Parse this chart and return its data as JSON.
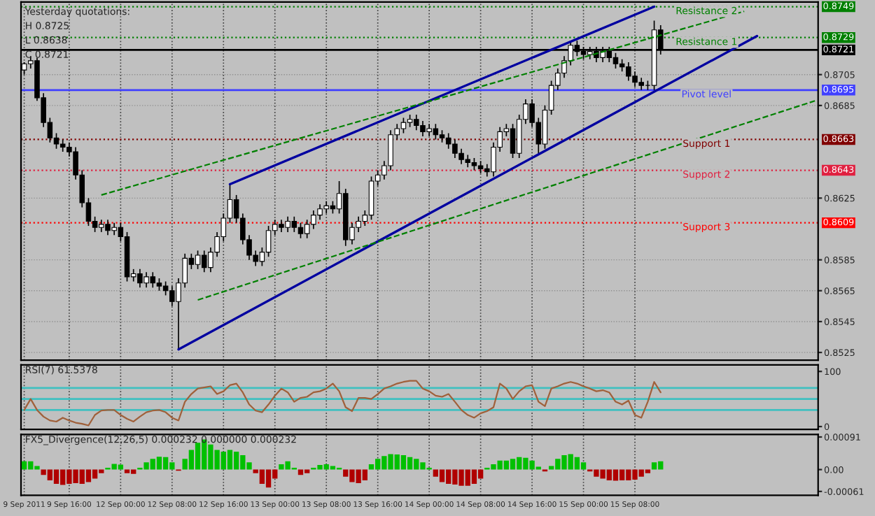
{
  "chart_data": [
    {
      "type": "candlestick",
      "tick_labels": "y",
      "grid": true,
      "annotations": [
        "Yesterday quotations:",
        "H 0.8725",
        "L 0.8638",
        "C 0.8721",
        {
          "text": "Resistance 2",
          "y": 0.8749
        },
        {
          "text": "Resistance 1",
          "y": 0.8729
        },
        {
          "text": "Pivot level",
          "y": 0.8695
        },
        {
          "text": "Support 1",
          "y": 0.8663
        },
        {
          "text": "Support 2",
          "y": 0.8643
        },
        {
          "text": "Support 3",
          "y": 0.8609
        }
      ],
      "categories": [
        null,
        null,
        null,
        null,
        null,
        null,
        null,
        null,
        null,
        null,
        null,
        null,
        null,
        null,
        null,
        null,
        null,
        null,
        null,
        null,
        null,
        null,
        null,
        null,
        null,
        null,
        null,
        null,
        null,
        null,
        null,
        null,
        null,
        null,
        null,
        null,
        null,
        null,
        null,
        null,
        null,
        null,
        null,
        null,
        null,
        null,
        null,
        null,
        null,
        null,
        null,
        null,
        null,
        null,
        null,
        null,
        null,
        null,
        null,
        null,
        null,
        null,
        null,
        null,
        null,
        null,
        null,
        null,
        null,
        null,
        null,
        null,
        null,
        null,
        null,
        null,
        null,
        null,
        null,
        null,
        null,
        null,
        null,
        null,
        null,
        null,
        null,
        null,
        null,
        null,
        null,
        null,
        null,
        null,
        null,
        null,
        null,
        null,
        null,
        null,
        null,
        null,
        null,
        null,
        null,
        null,
        null,
        null,
        null,
        null,
        null,
        null,
        null,
        null,
        null,
        null,
        null,
        null,
        null,
        null,
        null,
        null,
        null,
        null
      ],
      "ohlc": [
        [
          0.8708,
          0.8713,
          0.8705,
          0.8712
        ],
        [
          0.8712,
          0.8717,
          0.8709,
          0.8714
        ],
        [
          0.8714,
          0.8716,
          0.8688,
          0.869
        ],
        [
          0.869,
          0.8693,
          0.8671,
          0.8674
        ],
        [
          0.8674,
          0.8677,
          0.8661,
          0.8664
        ],
        [
          0.8664,
          0.8667,
          0.8657,
          0.866
        ],
        [
          0.866,
          0.8663,
          0.8655,
          0.8658
        ],
        [
          0.8658,
          0.8661,
          0.8652,
          0.8655
        ],
        [
          0.8655,
          0.8658,
          0.8637,
          0.864
        ],
        [
          0.864,
          0.8643,
          0.8619,
          0.8622
        ],
        [
          0.8622,
          0.8625,
          0.8607,
          0.861
        ],
        [
          0.861,
          0.8613,
          0.8603,
          0.8606
        ],
        [
          0.8606,
          0.8611,
          0.8603,
          0.8608
        ],
        [
          0.8608,
          0.8611,
          0.8601,
          0.8604
        ],
        [
          0.8604,
          0.8609,
          0.8601,
          0.8606
        ],
        [
          0.8606,
          0.8609,
          0.8597,
          0.86
        ],
        [
          0.86,
          0.8603,
          0.8571,
          0.8574
        ],
        [
          0.8574,
          0.8579,
          0.8571,
          0.8576
        ],
        [
          0.8576,
          0.8579,
          0.8567,
          0.857
        ],
        [
          0.857,
          0.8577,
          0.8567,
          0.8574
        ],
        [
          0.8574,
          0.8577,
          0.8567,
          0.857
        ],
        [
          0.857,
          0.8573,
          0.8565,
          0.8568
        ],
        [
          0.8568,
          0.8571,
          0.8562,
          0.8565
        ],
        [
          0.8565,
          0.8568,
          0.8555,
          0.8558
        ],
        [
          0.8558,
          0.8573,
          0.8527,
          0.857
        ],
        [
          0.857,
          0.8589,
          0.8567,
          0.8586
        ],
        [
          0.8586,
          0.8589,
          0.8579,
          0.8582
        ],
        [
          0.8582,
          0.8591,
          0.8579,
          0.8588
        ],
        [
          0.8588,
          0.8591,
          0.8577,
          0.858
        ],
        [
          0.858,
          0.8593,
          0.8577,
          0.859
        ],
        [
          0.859,
          0.8603,
          0.8587,
          0.86
        ],
        [
          0.86,
          0.8615,
          0.8597,
          0.8612
        ],
        [
          0.8612,
          0.8634,
          0.8609,
          0.8624
        ],
        [
          0.8624,
          0.8627,
          0.8609,
          0.8612
        ],
        [
          0.8612,
          0.8615,
          0.8595,
          0.8598
        ],
        [
          0.8598,
          0.8601,
          0.8585,
          0.8588
        ],
        [
          0.8588,
          0.8591,
          0.8581,
          0.8584
        ],
        [
          0.8584,
          0.8593,
          0.8581,
          0.859
        ],
        [
          0.859,
          0.8607,
          0.8587,
          0.8604
        ],
        [
          0.8604,
          0.8611,
          0.8601,
          0.8608
        ],
        [
          0.8608,
          0.8611,
          0.8603,
          0.8606
        ],
        [
          0.8606,
          0.8613,
          0.8603,
          0.861
        ],
        [
          0.861,
          0.8613,
          0.8603,
          0.8606
        ],
        [
          0.8606,
          0.8609,
          0.8599,
          0.8602
        ],
        [
          0.8602,
          0.8611,
          0.8599,
          0.8608
        ],
        [
          0.8608,
          0.8617,
          0.8605,
          0.8614
        ],
        [
          0.8614,
          0.8621,
          0.8611,
          0.8618
        ],
        [
          0.8618,
          0.8623,
          0.8615,
          0.862
        ],
        [
          0.862,
          0.8623,
          0.8615,
          0.8618
        ],
        [
          0.8618,
          0.8636,
          0.8615,
          0.8628
        ],
        [
          0.8628,
          0.8631,
          0.8594,
          0.8598
        ],
        [
          0.8598,
          0.8609,
          0.8595,
          0.8606
        ],
        [
          0.8606,
          0.8613,
          0.8603,
          0.861
        ],
        [
          0.861,
          0.8617,
          0.8607,
          0.8614
        ],
        [
          0.8614,
          0.8639,
          0.8611,
          0.8636
        ],
        [
          0.8636,
          0.8643,
          0.8633,
          0.864
        ],
        [
          0.864,
          0.8649,
          0.8637,
          0.8646
        ],
        [
          0.8646,
          0.8669,
          0.8643,
          0.8666
        ],
        [
          0.8666,
          0.8673,
          0.8663,
          0.867
        ],
        [
          0.867,
          0.8677,
          0.8667,
          0.8674
        ],
        [
          0.8674,
          0.8679,
          0.8671,
          0.8676
        ],
        [
          0.8676,
          0.8679,
          0.8669,
          0.8672
        ],
        [
          0.8672,
          0.8675,
          0.8665,
          0.8668
        ],
        [
          0.8668,
          0.8673,
          0.8665,
          0.867
        ],
        [
          0.867,
          0.8673,
          0.8663,
          0.8666
        ],
        [
          0.8666,
          0.8669,
          0.8661,
          0.8664
        ],
        [
          0.8664,
          0.8667,
          0.8657,
          0.866
        ],
        [
          0.866,
          0.8663,
          0.8651,
          0.8654
        ],
        [
          0.8654,
          0.8657,
          0.8647,
          0.865
        ],
        [
          0.865,
          0.8653,
          0.8645,
          0.8648
        ],
        [
          0.8648,
          0.8651,
          0.8643,
          0.8646
        ],
        [
          0.8646,
          0.8649,
          0.8641,
          0.8644
        ],
        [
          0.8644,
          0.8647,
          0.8639,
          0.8642
        ],
        [
          0.8642,
          0.8661,
          0.8639,
          0.8658
        ],
        [
          0.8658,
          0.8671,
          0.8655,
          0.8668
        ],
        [
          0.8668,
          0.8673,
          0.8665,
          0.867
        ],
        [
          0.867,
          0.8673,
          0.8651,
          0.8654
        ],
        [
          0.8654,
          0.8679,
          0.8651,
          0.8676
        ],
        [
          0.8676,
          0.8689,
          0.8673,
          0.8686
        ],
        [
          0.8686,
          0.8689,
          0.8671,
          0.8674
        ],
        [
          0.8674,
          0.8677,
          0.8654,
          0.866
        ],
        [
          0.866,
          0.8685,
          0.8657,
          0.8682
        ],
        [
          0.8682,
          0.8701,
          0.8679,
          0.8698
        ],
        [
          0.8698,
          0.8709,
          0.8695,
          0.8706
        ],
        [
          0.8706,
          0.8717,
          0.8703,
          0.8714
        ],
        [
          0.8714,
          0.8727,
          0.8711,
          0.8724
        ],
        [
          0.8724,
          0.8727,
          0.8717,
          0.872
        ],
        [
          0.872,
          0.8723,
          0.8715,
          0.8718
        ],
        [
          0.8718,
          0.8723,
          0.8715,
          0.872
        ],
        [
          0.872,
          0.8723,
          0.8713,
          0.8716
        ],
        [
          0.8716,
          0.8723,
          0.8713,
          0.872
        ],
        [
          0.872,
          0.8723,
          0.8713,
          0.8716
        ],
        [
          0.8716,
          0.8719,
          0.8709,
          0.8712
        ],
        [
          0.8712,
          0.8715,
          0.8707,
          0.871
        ],
        [
          0.871,
          0.8713,
          0.8701,
          0.8704
        ],
        [
          0.8704,
          0.8707,
          0.8697,
          0.87
        ],
        [
          0.87,
          0.8703,
          0.8695,
          0.8698
        ],
        [
          0.8698,
          0.8701,
          0.8695,
          0.8698
        ],
        [
          0.8698,
          0.874,
          0.8695,
          0.8734
        ],
        [
          0.8734,
          0.8737,
          0.8718,
          0.8721
        ],
        null,
        null,
        null,
        null,
        null,
        null,
        null,
        null,
        null,
        null,
        null,
        null,
        null,
        null,
        null,
        null,
        null,
        null,
        null,
        null,
        null,
        null,
        null,
        null
      ],
      "series": [
        {
          "type": "line",
          "color": "#0000a0",
          "values": [
            null,
            null,
            null,
            null,
            null,
            null,
            null,
            null,
            null,
            null,
            null,
            null,
            null,
            null,
            null,
            null,
            null,
            null,
            null,
            null,
            null,
            null,
            null,
            null,
            null,
            null,
            null,
            null,
            null,
            null,
            null,
            null,
            0.8634,
            null,
            null,
            null,
            null,
            null,
            null,
            null,
            null,
            null,
            null,
            null,
            null,
            null,
            null,
            null,
            null,
            null,
            null,
            null,
            null,
            null,
            null,
            null,
            null,
            null,
            null,
            null,
            null,
            null,
            null,
            null,
            null,
            null,
            null,
            null,
            null,
            null,
            null,
            null,
            null,
            null,
            null,
            null,
            null,
            null,
            null,
            null,
            null,
            null,
            null,
            null,
            null,
            null,
            null,
            null,
            null,
            null,
            null,
            null,
            null,
            null,
            null,
            null,
            null,
            null,
            0.8749,
            null,
            null,
            null,
            null,
            null,
            null,
            null,
            null,
            null,
            null,
            null,
            null,
            null,
            null,
            null,
            null,
            null,
            null,
            null,
            null,
            null,
            null,
            null,
            null,
            null
          ]
        },
        {
          "type": "line",
          "color": "#0000a0",
          "values": [
            null,
            null,
            null,
            null,
            null,
            null,
            null,
            null,
            null,
            null,
            null,
            null,
            null,
            null,
            null,
            null,
            null,
            null,
            null,
            null,
            null,
            null,
            null,
            null,
            0.8527,
            null,
            null,
            null,
            null,
            null,
            null,
            null,
            null,
            null,
            null,
            null,
            null,
            null,
            null,
            null,
            null,
            null,
            null,
            null,
            null,
            null,
            null,
            null,
            null,
            null,
            null,
            null,
            null,
            null,
            null,
            null,
            null,
            null,
            null,
            null,
            null,
            null,
            null,
            null,
            null,
            null,
            null,
            null,
            null,
            null,
            null,
            null,
            null,
            null,
            null,
            null,
            null,
            null,
            null,
            null,
            null,
            null,
            null,
            null,
            null,
            null,
            null,
            null,
            null,
            null,
            null,
            null,
            null,
            null,
            null,
            null,
            null,
            null,
            null,
            null,
            null,
            null,
            null,
            null,
            null,
            null,
            null,
            null,
            null,
            null,
            null,
            null,
            null,
            null,
            0.873,
            null,
            null,
            null,
            null,
            null,
            null,
            null,
            null,
            null
          ]
        },
        {
          "type": "line",
          "color": "#008000",
          "line_style": "dashed",
          "values": [
            null,
            null,
            null,
            null,
            null,
            null,
            null,
            null,
            null,
            null,
            null,
            null,
            0.8627,
            null,
            null,
            null,
            null,
            null,
            null,
            null,
            null,
            null,
            null,
            null,
            null,
            null,
            null,
            null,
            null,
            null,
            null,
            null,
            null,
            null,
            null,
            null,
            null,
            null,
            null,
            null,
            null,
            null,
            null,
            null,
            null,
            null,
            null,
            null,
            null,
            null,
            null,
            null,
            null,
            null,
            null,
            null,
            null,
            null,
            null,
            null,
            null,
            null,
            null,
            null,
            null,
            null,
            null,
            null,
            null,
            null,
            null,
            null,
            null,
            null,
            null,
            null,
            null,
            null,
            null,
            null,
            null,
            null,
            null,
            null,
            null,
            null,
            null,
            null,
            null,
            null,
            null,
            null,
            null,
            null,
            null,
            null,
            null,
            null,
            null,
            null,
            null,
            null,
            null,
            null,
            null,
            null,
            null,
            null,
            null,
            null,
            null,
            null,
            0.8746,
            null,
            null,
            null,
            null,
            null,
            null,
            null,
            null,
            null,
            null,
            null
          ]
        },
        {
          "type": "line",
          "color": "#008000",
          "line_style": "dashed",
          "values": [
            null,
            null,
            null,
            null,
            null,
            null,
            null,
            null,
            null,
            null,
            null,
            null,
            null,
            null,
            null,
            null,
            null,
            null,
            null,
            null,
            null,
            null,
            null,
            null,
            null,
            null,
            null,
            0.8559,
            null,
            null,
            null,
            null,
            null,
            null,
            null,
            null,
            null,
            null,
            null,
            null,
            null,
            null,
            null,
            null,
            null,
            null,
            null,
            null,
            null,
            null,
            null,
            null,
            null,
            null,
            null,
            null,
            null,
            null,
            null,
            null,
            null,
            null,
            null,
            null,
            null,
            null,
            null,
            null,
            null,
            null,
            null,
            null,
            null,
            null,
            null,
            null,
            null,
            null,
            null,
            null,
            null,
            null,
            null,
            null,
            null,
            null,
            null,
            null,
            null,
            null,
            null,
            null,
            null,
            null,
            null,
            null,
            null,
            null,
            null,
            null,
            null,
            null,
            null,
            null,
            null,
            null,
            null,
            null,
            null,
            null,
            null,
            null,
            null,
            null,
            null,
            null,
            null,
            null,
            null,
            null,
            null,
            null,
            null,
            0.8688
          ]
        }
      ],
      "ylim": [
        0.852,
        0.8752
      ],
      "yticks": [
        0.8525,
        0.8545,
        0.8565,
        0.8585,
        0.8625,
        0.8685,
        0.8705
      ],
      "ref_lines": [
        {
          "axis": "y",
          "value": 0.8749,
          "label": "0.8749",
          "color": "#008000",
          "line_style": "dotted"
        },
        {
          "axis": "y",
          "value": 0.8729,
          "label": "0.8729",
          "color": "#008000",
          "line_style": "dotted"
        },
        {
          "axis": "y",
          "value": 0.8721,
          "label": "0.8721",
          "color": "#000000",
          "line_style": "solid"
        },
        {
          "axis": "y",
          "value": 0.8695,
          "label": "0.8695",
          "color": "#4040ff",
          "line_style": "solid"
        },
        {
          "axis": "y",
          "value": 0.8663,
          "label": "0.8663",
          "color": "#800000",
          "line_style": "dotted"
        },
        {
          "axis": "y",
          "value": 0.8643,
          "label": "0.8643",
          "color": "#e02040",
          "line_style": "dotted"
        },
        {
          "axis": "y",
          "value": 0.8609,
          "label": "0.8609",
          "color": "#ff0000",
          "line_style": "dotted"
        }
      ]
    },
    {
      "type": "line",
      "title": "RSI(7) 61.5378",
      "tick_labels": "y",
      "grid": "x",
      "categories": [
        null,
        null,
        null,
        null,
        null,
        null,
        null,
        null,
        null,
        null,
        null,
        null,
        null,
        null,
        null,
        null,
        null,
        null,
        null,
        null,
        null,
        null,
        null,
        null,
        null,
        null,
        null,
        null,
        null,
        null,
        null,
        null,
        null,
        null,
        null,
        null,
        null,
        null,
        null,
        null,
        null,
        null,
        null,
        null,
        null,
        null,
        null,
        null,
        null,
        null,
        null,
        null,
        null,
        null,
        null,
        null,
        null,
        null,
        null,
        null,
        null,
        null,
        null,
        null,
        null,
        null,
        null,
        null,
        null,
        null,
        null,
        null,
        null,
        null,
        null,
        null,
        null,
        null,
        null,
        null,
        null,
        null,
        null,
        null,
        null,
        null,
        null,
        null,
        null,
        null,
        null,
        null,
        null,
        null,
        null,
        null,
        null,
        null,
        null,
        null,
        null,
        null,
        null,
        null,
        null,
        null,
        null,
        null,
        null,
        null,
        null,
        null,
        null,
        null,
        null,
        null,
        null,
        null,
        null,
        null,
        null,
        null,
        null,
        null
      ],
      "series": [
        {
          "color": "#a0603a",
          "values": [
            30,
            50,
            30,
            18,
            11,
            9,
            16,
            11,
            7,
            5,
            2,
            21,
            29,
            30,
            30,
            21,
            14,
            9,
            18,
            26,
            29,
            30,
            26,
            16,
            11,
            45,
            59,
            69,
            71,
            73,
            59,
            64,
            75,
            78,
            62,
            40,
            29,
            26,
            40,
            56,
            69,
            62,
            45,
            52,
            54,
            62,
            64,
            69,
            78,
            64,
            35,
            28,
            52,
            52,
            50,
            59,
            69,
            73,
            78,
            81,
            83,
            83,
            69,
            64,
            56,
            54,
            59,
            45,
            30,
            21,
            16,
            24,
            28,
            35,
            78,
            69,
            50,
            64,
            73,
            75,
            45,
            37,
            69,
            73,
            78,
            81,
            78,
            73,
            69,
            64,
            66,
            62,
            45,
            40,
            47,
            21,
            16,
            45,
            81,
            62,
            null,
            null,
            null,
            null,
            null,
            null,
            null,
            null,
            null,
            null,
            null,
            null,
            null,
            null,
            null,
            null,
            null,
            null,
            null,
            null,
            null,
            null,
            null,
            null
          ]
        }
      ],
      "ylim": [
        -5,
        112
      ],
      "yticks": [
        0,
        100
      ],
      "ref_lines": [
        {
          "axis": "y",
          "value": 70,
          "label": null,
          "color": "#40c0c0",
          "line_style": "solid"
        },
        {
          "axis": "y",
          "value": 50,
          "label": null,
          "color": "#40c0c0",
          "line_style": "solid"
        },
        {
          "axis": "y",
          "value": 30,
          "label": null,
          "color": "#40c0c0",
          "line_style": "solid"
        }
      ]
    },
    {
      "type": "bar",
      "title": "FX5_Divergence(12,26,5) 0.000232 0.000000 0.000232",
      "grid": "x",
      "categories": [
        "9 Sep 2011",
        null,
        null,
        null,
        null,
        null,
        null,
        "9 Sep 16:00",
        null,
        null,
        null,
        null,
        null,
        null,
        null,
        "12 Sep 00:00",
        null,
        null,
        null,
        null,
        null,
        null,
        null,
        "12 Sep 08:00",
        null,
        null,
        null,
        null,
        null,
        null,
        null,
        "12 Sep 16:00",
        null,
        null,
        null,
        null,
        null,
        null,
        null,
        "13 Sep 00:00",
        null,
        null,
        null,
        null,
        null,
        null,
        null,
        "13 Sep 08:00",
        null,
        null,
        null,
        null,
        null,
        null,
        null,
        "13 Sep 16:00",
        null,
        null,
        null,
        null,
        null,
        null,
        null,
        "14 Sep 00:00",
        null,
        null,
        null,
        null,
        null,
        null,
        null,
        "14 Sep 08:00",
        null,
        null,
        null,
        null,
        null,
        null,
        null,
        "14 Sep 16:00",
        null,
        null,
        null,
        null,
        null,
        null,
        null,
        "15 Sep 00:00",
        null,
        null,
        null,
        null,
        null,
        null,
        null,
        "15 Sep 08:00",
        null,
        null,
        null,
        null,
        null,
        null,
        null,
        null,
        null,
        null,
        null,
        null,
        null,
        null,
        null,
        null,
        null,
        null,
        null,
        null,
        null,
        null,
        null,
        null,
        null,
        null,
        null,
        null
      ],
      "series": [
        {
          "color": "#00c000",
          "values": [
            0.00023,
            0.00023,
            0.0001,
            null,
            null,
            null,
            null,
            null,
            null,
            null,
            null,
            null,
            null,
            5e-05,
            0.00016,
            0.00014,
            null,
            null,
            5e-05,
            0.0002,
            0.0003,
            0.00036,
            0.00035,
            0.0002,
            null,
            0.0003,
            0.00055,
            0.00075,
            0.00084,
            0.0007,
            0.00055,
            0.0005,
            0.00055,
            0.0005,
            0.0004,
            0.0002,
            null,
            null,
            null,
            null,
            0.00015,
            0.00023,
            5e-05,
            null,
            null,
            5e-05,
            0.00013,
            0.00015,
            0.0001,
            5e-05,
            null,
            null,
            null,
            null,
            0.00015,
            0.0003,
            0.00038,
            0.00043,
            0.00042,
            0.0004,
            0.00035,
            0.0003,
            0.0002,
            5e-05,
            null,
            null,
            null,
            null,
            null,
            null,
            null,
            null,
            5e-05,
            0.00015,
            0.00025,
            0.00025,
            0.0003,
            0.00035,
            0.00033,
            0.00025,
            8e-05,
            null,
            0.0001,
            0.0003,
            0.0004,
            0.00043,
            0.00035,
            0.0002,
            null,
            null,
            null,
            null,
            null,
            null,
            null,
            null,
            null,
            null,
            0.0002,
            0.00023,
            null,
            null,
            null,
            null,
            null,
            null,
            null,
            null,
            null,
            null,
            null,
            null,
            null,
            null,
            null,
            null,
            null,
            null,
            null,
            null,
            null,
            null,
            null,
            null
          ]
        },
        {
          "color": "#b00000",
          "values": [
            null,
            null,
            null,
            -0.00015,
            -0.0003,
            -0.0004,
            -0.00043,
            -0.0004,
            -0.00038,
            -0.0004,
            -0.00035,
            -0.00025,
            -0.0001,
            null,
            null,
            null,
            -0.0001,
            -0.00012,
            null,
            null,
            null,
            null,
            null,
            null,
            -3e-05,
            null,
            null,
            null,
            null,
            null,
            null,
            null,
            null,
            null,
            null,
            null,
            -0.0001,
            -0.0004,
            -0.0005,
            -0.00025,
            null,
            null,
            null,
            -0.00015,
            -0.0001,
            null,
            null,
            null,
            null,
            null,
            -0.0002,
            -0.00035,
            -0.00038,
            -0.0003,
            null,
            null,
            null,
            null,
            null,
            null,
            null,
            null,
            null,
            null,
            -0.0002,
            -0.00035,
            -0.0004,
            -0.00042,
            -0.00045,
            -0.00045,
            -0.0004,
            -0.00025,
            null,
            null,
            null,
            null,
            null,
            null,
            null,
            null,
            null,
            -5e-05,
            null,
            null,
            null,
            null,
            null,
            null,
            -5e-05,
            -0.0002,
            -0.00025,
            -0.0003,
            -0.00031,
            -0.0003,
            -0.0003,
            -0.00028,
            -0.0002,
            -0.0001,
            null,
            null,
            null,
            null,
            null,
            null,
            null,
            null,
            null,
            null,
            null,
            null,
            null,
            null,
            null,
            null,
            null,
            null,
            null,
            null,
            null,
            null,
            null,
            null,
            null,
            null
          ]
        }
      ],
      "ylim": [
        -0.00072,
        0.00098
      ],
      "yticks": [
        {
          "value": 0.00091,
          "label": "0.00091"
        },
        {
          "value": 0,
          "label": "0.00"
        },
        {
          "value": -0.00061,
          "label": "-0.00061"
        }
      ]
    }
  ]
}
